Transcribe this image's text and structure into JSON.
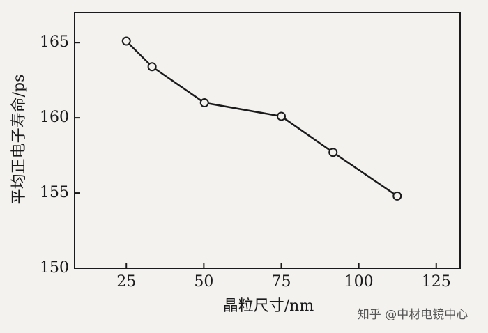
{
  "chart_data": {
    "type": "line",
    "xlabel": "晶粒尺寸/nm",
    "ylabel": "平均正电子寿命/ps",
    "x": [
      25,
      33.3,
      50.2,
      75,
      91.7,
      112.4
    ],
    "series": [
      {
        "color": "#1a1a1a",
        "values": [
          165.1,
          163.4,
          161.0,
          160.1,
          157.7,
          154.8
        ]
      }
    ],
    "xlim": [
      8.3,
      132.7
    ],
    "ylim": [
      150,
      167.0
    ],
    "xticks": [
      25,
      50,
      75,
      100,
      125
    ],
    "yticks": [
      150,
      155,
      160,
      165
    ],
    "marker": "open-circle",
    "grid": false
  },
  "watermark": "知乎 @中材电镜中心"
}
